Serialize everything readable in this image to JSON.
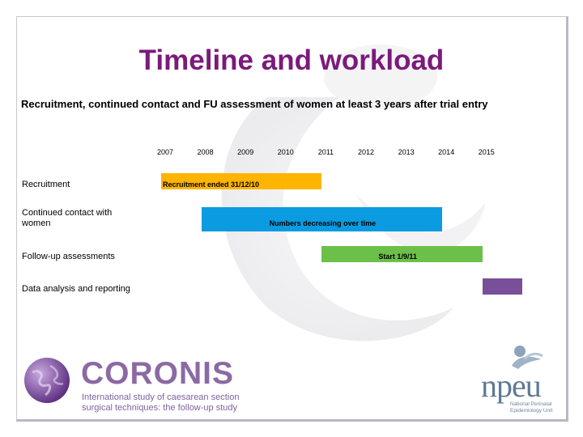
{
  "slide": {
    "title": "Timeline and workload",
    "subtitle": "Recruitment, continued contact and FU assessment of women at least 3 years after trial entry"
  },
  "timeline": {
    "years": [
      "2007",
      "2008",
      "2009",
      "2010",
      "2011",
      "2012",
      "2013",
      "2014",
      "2015"
    ],
    "rows": [
      {
        "label": "Recruitment",
        "bar_text": "Recruitment ended 31/12/10",
        "color": "#ffb400",
        "start": 2007.0,
        "end": 2011.0
      },
      {
        "label": "Continued contact with women",
        "bar_text": "Numbers decreasing over time",
        "color": "#0b9be0",
        "start": 2008.0,
        "end": 2014.0
      },
      {
        "label": "Follow-up assessments",
        "bar_text": "Start 1/9/11",
        "color": "#6cc04a",
        "start": 2011.0,
        "end": 2015.0
      },
      {
        "label": "Data analysis and reporting",
        "bar_text": "",
        "color": "#7a4f9a",
        "start": 2015.0,
        "end": 2016.0
      }
    ]
  },
  "logos": {
    "coronis_name": "CORONIS",
    "coronis_tagline_1": "International study of caesarean section",
    "coronis_tagline_2": "surgical techniques: the follow-up study",
    "npeu_name": "npeu",
    "npeu_tagline_1": "National Perinatal",
    "npeu_tagline_2": "Epidemiology Unit",
    "coronis_icon": "globe-icon",
    "npeu_icon": "npeu-figure-icon"
  }
}
